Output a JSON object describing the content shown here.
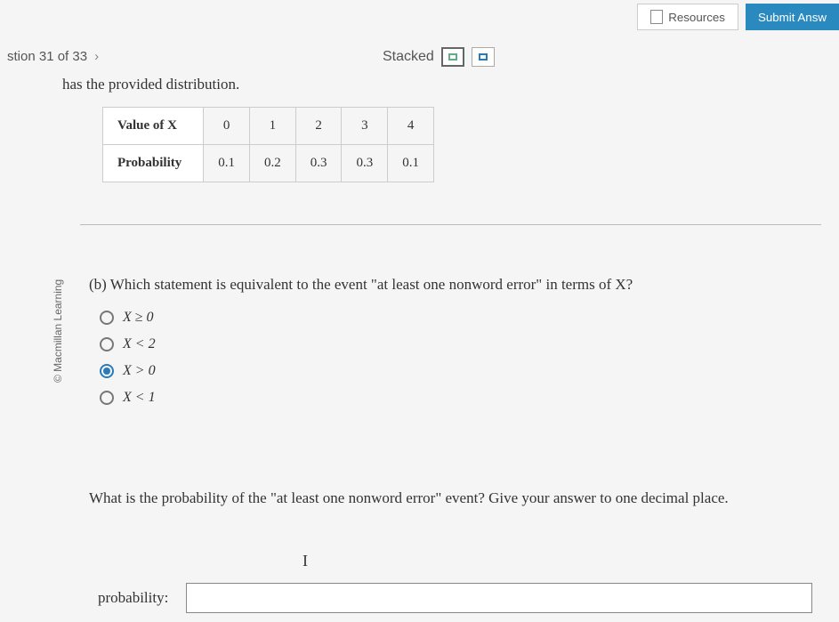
{
  "top": {
    "resources": "Resources",
    "submit": "Submit Answ"
  },
  "nav": {
    "counter": "stion 31 of 33",
    "stacked_label": "Stacked"
  },
  "intro": "has the provided distribution.",
  "table": {
    "row1_header": "Value of X",
    "row2_header": "Probability",
    "values": [
      "0",
      "1",
      "2",
      "3",
      "4"
    ],
    "probs": [
      "0.1",
      "0.2",
      "0.3",
      "0.3",
      "0.1"
    ]
  },
  "copyright": "© Macmillan Learning",
  "partb": {
    "prompt": "(b) Which statement is equivalent to the event \"at least one nonword error\" in terms of X?",
    "options": [
      {
        "label": "X ≥ 0",
        "selected": false
      },
      {
        "label": "X < 2",
        "selected": false
      },
      {
        "label": "X > 0",
        "selected": true
      },
      {
        "label": "X < 1",
        "selected": false
      }
    ]
  },
  "followup": "What is the probability of the \"at least one nonword error\" event? Give your answer to one decimal place.",
  "cursor_glyph": "I",
  "answer_label": "probability:",
  "answer_value": "",
  "colors": {
    "accent": "#2a7ab8",
    "submit_bg": "#2a8abf",
    "border": "#ccc",
    "text": "#333"
  }
}
